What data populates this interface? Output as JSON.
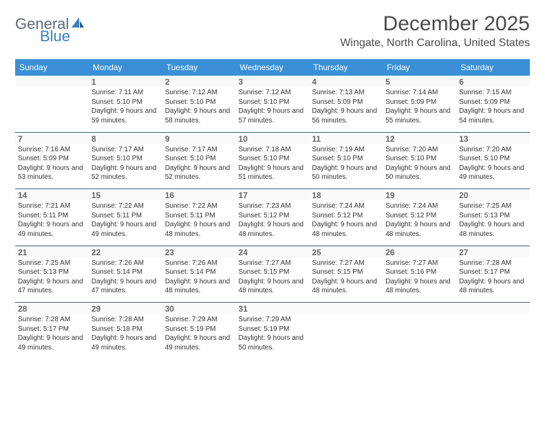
{
  "logo": {
    "text1": "General",
    "text2": "Blue"
  },
  "header": {
    "title": "December 2025",
    "subtitle": "Wingate, North Carolina, United States"
  },
  "colors": {
    "header_bg": "#3a8fd6",
    "header_text": "#ffffff",
    "rule": "#3a5f7a",
    "logo_gray": "#5a6b7a",
    "logo_blue": "#3a7fbf"
  },
  "weekdays": [
    "Sunday",
    "Monday",
    "Tuesday",
    "Wednesday",
    "Thursday",
    "Friday",
    "Saturday"
  ],
  "weeks": [
    [
      null,
      {
        "n": "1",
        "sr": "7:11 AM",
        "ss": "5:10 PM",
        "dl": "9 hours and 59 minutes."
      },
      {
        "n": "2",
        "sr": "7:12 AM",
        "ss": "5:10 PM",
        "dl": "9 hours and 58 minutes."
      },
      {
        "n": "3",
        "sr": "7:12 AM",
        "ss": "5:10 PM",
        "dl": "9 hours and 57 minutes."
      },
      {
        "n": "4",
        "sr": "7:13 AM",
        "ss": "5:09 PM",
        "dl": "9 hours and 56 minutes."
      },
      {
        "n": "5",
        "sr": "7:14 AM",
        "ss": "5:09 PM",
        "dl": "9 hours and 55 minutes."
      },
      {
        "n": "6",
        "sr": "7:15 AM",
        "ss": "5:09 PM",
        "dl": "9 hours and 54 minutes."
      }
    ],
    [
      {
        "n": "7",
        "sr": "7:16 AM",
        "ss": "5:09 PM",
        "dl": "9 hours and 53 minutes."
      },
      {
        "n": "8",
        "sr": "7:17 AM",
        "ss": "5:10 PM",
        "dl": "9 hours and 52 minutes."
      },
      {
        "n": "9",
        "sr": "7:17 AM",
        "ss": "5:10 PM",
        "dl": "9 hours and 52 minutes."
      },
      {
        "n": "10",
        "sr": "7:18 AM",
        "ss": "5:10 PM",
        "dl": "9 hours and 51 minutes."
      },
      {
        "n": "11",
        "sr": "7:19 AM",
        "ss": "5:10 PM",
        "dl": "9 hours and 50 minutes."
      },
      {
        "n": "12",
        "sr": "7:20 AM",
        "ss": "5:10 PM",
        "dl": "9 hours and 50 minutes."
      },
      {
        "n": "13",
        "sr": "7:20 AM",
        "ss": "5:10 PM",
        "dl": "9 hours and 49 minutes."
      }
    ],
    [
      {
        "n": "14",
        "sr": "7:21 AM",
        "ss": "5:11 PM",
        "dl": "9 hours and 49 minutes."
      },
      {
        "n": "15",
        "sr": "7:22 AM",
        "ss": "5:11 PM",
        "dl": "9 hours and 49 minutes."
      },
      {
        "n": "16",
        "sr": "7:22 AM",
        "ss": "5:11 PM",
        "dl": "9 hours and 48 minutes."
      },
      {
        "n": "17",
        "sr": "7:23 AM",
        "ss": "5:12 PM",
        "dl": "9 hours and 48 minutes."
      },
      {
        "n": "18",
        "sr": "7:24 AM",
        "ss": "5:12 PM",
        "dl": "9 hours and 48 minutes."
      },
      {
        "n": "19",
        "sr": "7:24 AM",
        "ss": "5:12 PM",
        "dl": "9 hours and 48 minutes."
      },
      {
        "n": "20",
        "sr": "7:25 AM",
        "ss": "5:13 PM",
        "dl": "9 hours and 48 minutes."
      }
    ],
    [
      {
        "n": "21",
        "sr": "7:25 AM",
        "ss": "5:13 PM",
        "dl": "9 hours and 47 minutes."
      },
      {
        "n": "22",
        "sr": "7:26 AM",
        "ss": "5:14 PM",
        "dl": "9 hours and 47 minutes."
      },
      {
        "n": "23",
        "sr": "7:26 AM",
        "ss": "5:14 PM",
        "dl": "9 hours and 48 minutes."
      },
      {
        "n": "24",
        "sr": "7:27 AM",
        "ss": "5:15 PM",
        "dl": "9 hours and 48 minutes."
      },
      {
        "n": "25",
        "sr": "7:27 AM",
        "ss": "5:15 PM",
        "dl": "9 hours and 48 minutes."
      },
      {
        "n": "26",
        "sr": "7:27 AM",
        "ss": "5:16 PM",
        "dl": "9 hours and 48 minutes."
      },
      {
        "n": "27",
        "sr": "7:28 AM",
        "ss": "5:17 PM",
        "dl": "9 hours and 48 minutes."
      }
    ],
    [
      {
        "n": "28",
        "sr": "7:28 AM",
        "ss": "5:17 PM",
        "dl": "9 hours and 49 minutes."
      },
      {
        "n": "29",
        "sr": "7:28 AM",
        "ss": "5:18 PM",
        "dl": "9 hours and 49 minutes."
      },
      {
        "n": "30",
        "sr": "7:29 AM",
        "ss": "5:19 PM",
        "dl": "9 hours and 49 minutes."
      },
      {
        "n": "31",
        "sr": "7:29 AM",
        "ss": "5:19 PM",
        "dl": "9 hours and 50 minutes."
      },
      null,
      null,
      null
    ]
  ],
  "labels": {
    "sunrise": "Sunrise: ",
    "sunset": "Sunset: ",
    "daylight": "Daylight: "
  }
}
